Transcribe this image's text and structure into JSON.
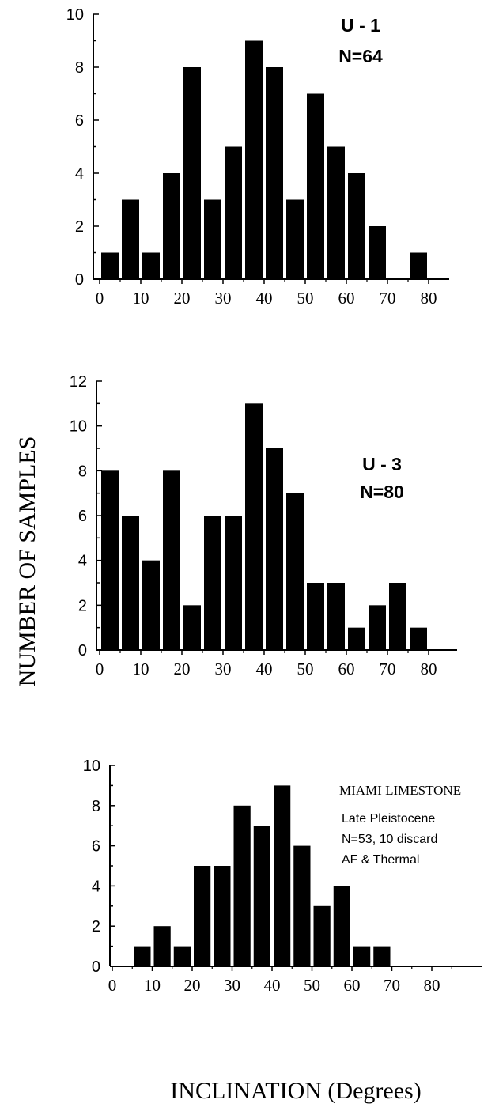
{
  "figure": {
    "ylabel": "NUMBER OF SAMPLES",
    "xlabel": "INCLINATION (Degrees)"
  },
  "chart_data": [
    {
      "type": "bar",
      "title": "U - 1",
      "annotation": [
        "N=64"
      ],
      "x": [
        2.5,
        7.5,
        12.5,
        17.5,
        22.5,
        27.5,
        32.5,
        37.5,
        42.5,
        47.5,
        52.5,
        57.5,
        62.5,
        67.5,
        77.5
      ],
      "values": [
        1,
        3,
        1,
        4,
        8,
        3,
        5,
        9,
        8,
        3,
        7,
        5,
        4,
        2,
        1
      ],
      "bin_width": 5,
      "xticks": [
        0,
        10,
        20,
        30,
        40,
        50,
        60,
        70,
        80
      ],
      "yticks": [
        0,
        2,
        4,
        6,
        8,
        10
      ],
      "xlim": [
        0,
        85
      ],
      "ylim": [
        0,
        10
      ]
    },
    {
      "type": "bar",
      "title": "U - 3",
      "annotation": [
        "N=80"
      ],
      "x": [
        2.5,
        7.5,
        12.5,
        17.5,
        22.5,
        27.5,
        32.5,
        37.5,
        42.5,
        47.5,
        52.5,
        57.5,
        62.5,
        67.5,
        72.5,
        77.5
      ],
      "values": [
        8,
        6,
        4,
        8,
        2,
        6,
        6,
        11,
        9,
        7,
        3,
        3,
        1,
        2,
        3,
        1
      ],
      "bin_width": 5,
      "xticks": [
        0,
        10,
        20,
        30,
        40,
        50,
        60,
        70,
        80
      ],
      "yticks": [
        0,
        2,
        4,
        6,
        8,
        10,
        12
      ],
      "xlim": [
        0,
        80
      ],
      "ylim": [
        0,
        12
      ]
    },
    {
      "type": "bar",
      "title": "MIAMI LIMESTONE",
      "annotation": [
        "Late Pleistocene",
        "N=53, 10 discard",
        "AF & Thermal"
      ],
      "x": [
        7.5,
        12.5,
        17.5,
        22.5,
        27.5,
        32.5,
        37.5,
        42.5,
        47.5,
        52.5,
        57.5,
        62.5,
        67.5
      ],
      "values": [
        1,
        2,
        1,
        5,
        5,
        8,
        7,
        9,
        6,
        3,
        4,
        1,
        1
      ],
      "bin_width": 5,
      "xticks": [
        0,
        10,
        20,
        30,
        40,
        50,
        60,
        70,
        80
      ],
      "yticks": [
        0,
        2,
        4,
        6,
        8,
        10
      ],
      "xlim": [
        0,
        90
      ],
      "ylim": [
        0,
        10
      ]
    }
  ]
}
